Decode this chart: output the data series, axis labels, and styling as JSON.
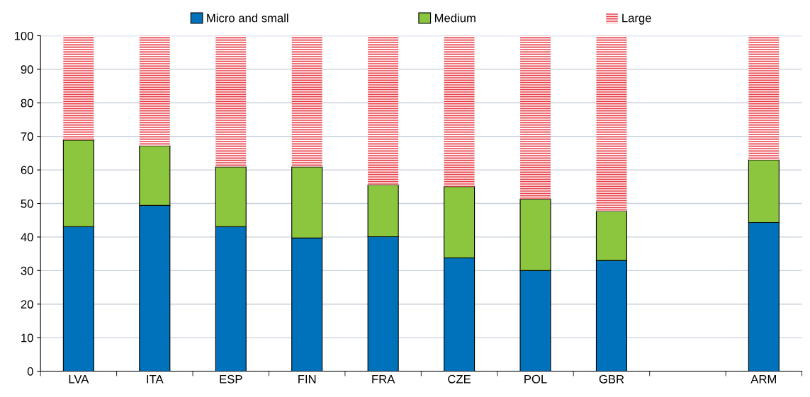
{
  "chart_data": {
    "type": "bar",
    "stacked": true,
    "categories": [
      "LVA",
      "ITA",
      "ESP",
      "FIN",
      "FRA",
      "CZE",
      "POL",
      "GBR",
      null,
      "ARM"
    ],
    "series": [
      {
        "name": "Micro and small",
        "color": "#0072bc",
        "values": [
          43.1,
          49.4,
          43.1,
          39.7,
          40.1,
          33.8,
          30.0,
          33.0,
          null,
          44.3
        ]
      },
      {
        "name": "Medium",
        "color": "#8cc63f",
        "values": [
          25.8,
          17.8,
          17.8,
          21.2,
          15.4,
          21.2,
          21.3,
          14.7,
          null,
          18.7
        ]
      },
      {
        "name": "Large",
        "color": "#e8404a",
        "values": [
          31.1,
          32.8,
          39.1,
          39.1,
          44.5,
          45.0,
          48.7,
          52.3,
          null,
          37.0
        ]
      }
    ],
    "ylim": [
      0,
      100
    ],
    "yticks": [
      0,
      10,
      20,
      30,
      40,
      50,
      60,
      70,
      80,
      90,
      100
    ],
    "grid": "y",
    "legend": "top"
  }
}
